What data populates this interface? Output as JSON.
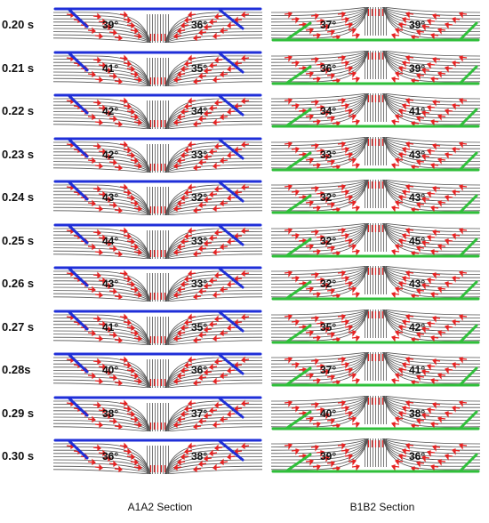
{
  "sections": {
    "left_label": "A1A2 Section",
    "right_label": "B1B2 Section"
  },
  "colors": {
    "a_section_wall": "#1f2fd8",
    "b_section_wall": "#2fbf3a",
    "vectors": "#e62222",
    "streamlines": "#555555"
  },
  "rows": [
    {
      "time": "0.20 s",
      "a_left": "39°",
      "a_right": "36°",
      "b_left": "37°",
      "b_right": "39°"
    },
    {
      "time": "0.21 s",
      "a_left": "41°",
      "a_right": "35°",
      "b_left": "36°",
      "b_right": "39°"
    },
    {
      "time": "0.22 s",
      "a_left": "42°",
      "a_right": "34°",
      "b_left": "34°",
      "b_right": "41°"
    },
    {
      "time": "0.23 s",
      "a_left": "42°",
      "a_right": "33°",
      "b_left": "33°",
      "b_right": "43°"
    },
    {
      "time": "0.24 s",
      "a_left": "43°",
      "a_right": "32°",
      "b_left": "32°",
      "b_right": "43°"
    },
    {
      "time": "0.25 s",
      "a_left": "44°",
      "a_right": "33°",
      "b_left": "32°",
      "b_right": "45°"
    },
    {
      "time": "0.26 s",
      "a_left": "43°",
      "a_right": "33°",
      "b_left": "32°",
      "b_right": "43°"
    },
    {
      "time": "0.27 s",
      "a_left": "41°",
      "a_right": "35°",
      "b_left": "35°",
      "b_right": "42°"
    },
    {
      "time": "0.28s",
      "a_left": "40°",
      "a_right": "36°",
      "b_left": "37°",
      "b_right": "41°"
    },
    {
      "time": "0.29 s",
      "a_left": "38°",
      "a_right": "37°",
      "b_left": "40°",
      "b_right": "38°"
    },
    {
      "time": "0.30 s",
      "a_left": "36°",
      "a_right": "38°",
      "b_left": "39°",
      "b_right": "36°"
    }
  ]
}
